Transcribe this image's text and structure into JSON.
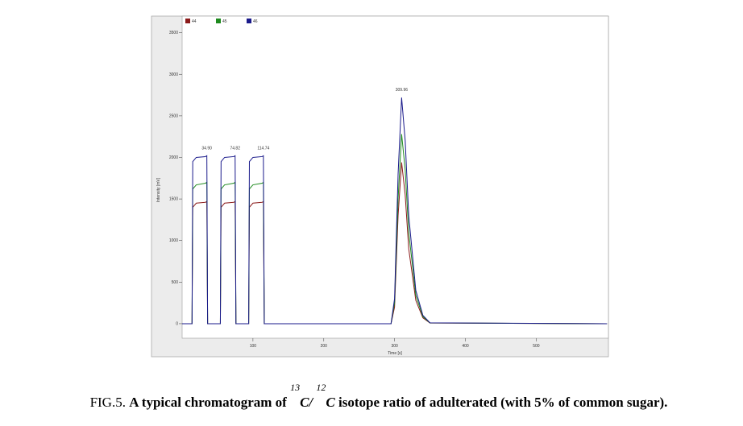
{
  "chart_data": {
    "type": "line",
    "xlabel": "Time [s]",
    "ylabel": "Intensity [mV]",
    "x": [
      0,
      14,
      15,
      20,
      33,
      34.9,
      36,
      54,
      55,
      60,
      73,
      74.82,
      76,
      94,
      95,
      100,
      113,
      114.74,
      116,
      295,
      300,
      305,
      309.96,
      315,
      320,
      330,
      340,
      350,
      600
    ],
    "series": [
      {
        "name": "44",
        "color": "#8b1a1a",
        "values": [
          0,
          0,
          1400,
          1450,
          1460,
          1470,
          0,
          0,
          1400,
          1450,
          1460,
          1470,
          0,
          0,
          1400,
          1450,
          1460,
          1470,
          0,
          0,
          200,
          1300,
          1940,
          1550,
          900,
          280,
          70,
          8,
          0
        ]
      },
      {
        "name": "45",
        "color": "#1e8a1e",
        "values": [
          0,
          0,
          1620,
          1670,
          1690,
          1700,
          0,
          0,
          1620,
          1670,
          1690,
          1700,
          0,
          0,
          1620,
          1670,
          1690,
          1700,
          0,
          0,
          250,
          1500,
          2280,
          1850,
          1100,
          340,
          85,
          9,
          0
        ]
      },
      {
        "name": "46",
        "color": "#1a1a8b",
        "values": [
          0,
          0,
          1950,
          2000,
          2010,
          2020,
          0,
          0,
          1950,
          2000,
          2010,
          2020,
          0,
          0,
          1950,
          2000,
          2010,
          2020,
          0,
          0,
          300,
          1800,
          2720,
          2200,
          1300,
          400,
          100,
          10,
          0
        ]
      }
    ],
    "annotations": [
      {
        "text": "34.90",
        "x": 34.9,
        "color": "#e03030"
      },
      {
        "text": "74.82",
        "x": 74.82,
        "color": "#222222"
      },
      {
        "text": "114.74",
        "x": 114.74,
        "color": "#222222"
      },
      {
        "text": "309.96",
        "x": 309.96,
        "color": "#222222"
      }
    ],
    "xlim": [
      0,
      602
    ],
    "ylim": [
      -175,
      3700
    ],
    "xticks": [
      100,
      200,
      300,
      400,
      500
    ],
    "yticks": [
      0,
      500,
      1000,
      1500,
      2000,
      2500,
      3000,
      3500
    ]
  },
  "caption": {
    "label": "FIG.5.",
    "text1": "A typical chromatogram of",
    "sup1": "13",
    "elem1": "C/",
    "sup2": "12",
    "elem2": "C",
    "text2": "isotope ratio of adulterated (with 5% of common sugar)."
  }
}
